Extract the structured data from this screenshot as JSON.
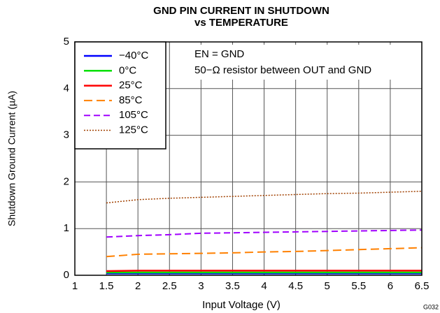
{
  "chart_data": {
    "type": "line",
    "title": [
      "GND PIN CURRENT IN SHUTDOWN",
      "vs TEMPERATURE"
    ],
    "xlabel": "Input Voltage (V)",
    "ylabel": "Shutdown Ground Current (µA)",
    "annotations": [
      "EN = GND",
      "50−Ω resistor between OUT and GND",
      "G032"
    ],
    "x": [
      1.5,
      2,
      2.5,
      3,
      3.5,
      4,
      4.5,
      5,
      5.5,
      6,
      6.5
    ],
    "series": [
      {
        "name": "−40°C",
        "color": "#0000ff",
        "style": "solid",
        "values": [
          0.04,
          0.04,
          0.04,
          0.04,
          0.04,
          0.04,
          0.04,
          0.04,
          0.04,
          0.04,
          0.04
        ]
      },
      {
        "name": "0°C",
        "color": "#00e000",
        "style": "solid",
        "values": [
          0.06,
          0.06,
          0.06,
          0.06,
          0.06,
          0.06,
          0.06,
          0.06,
          0.06,
          0.06,
          0.06
        ]
      },
      {
        "name": "25°C",
        "color": "#ff0000",
        "style": "solid",
        "values": [
          0.09,
          0.1,
          0.1,
          0.1,
          0.1,
          0.1,
          0.1,
          0.1,
          0.1,
          0.1,
          0.1
        ]
      },
      {
        "name": "85°C",
        "color": "#ff8000",
        "style": "dashed",
        "values": [
          0.4,
          0.45,
          0.46,
          0.47,
          0.48,
          0.5,
          0.51,
          0.53,
          0.55,
          0.57,
          0.59
        ]
      },
      {
        "name": "105°C",
        "color": "#a000ff",
        "style": "dashed",
        "values": [
          0.82,
          0.85,
          0.87,
          0.9,
          0.91,
          0.92,
          0.93,
          0.94,
          0.95,
          0.96,
          0.97
        ]
      },
      {
        "name": "125°C",
        "color": "#a04000",
        "style": "dotted",
        "values": [
          1.55,
          1.62,
          1.65,
          1.67,
          1.69,
          1.71,
          1.73,
          1.75,
          1.76,
          1.78,
          1.8
        ]
      }
    ],
    "xlim": [
      1,
      6.5
    ],
    "xticks": [
      1,
      1.5,
      2,
      2.5,
      3,
      3.5,
      4,
      4.5,
      5,
      5.5,
      6,
      6.5
    ],
    "ylim": [
      0,
      5
    ],
    "yticks": [
      0,
      1,
      2,
      3,
      4,
      5
    ],
    "grid": true,
    "legend": "upper left"
  }
}
